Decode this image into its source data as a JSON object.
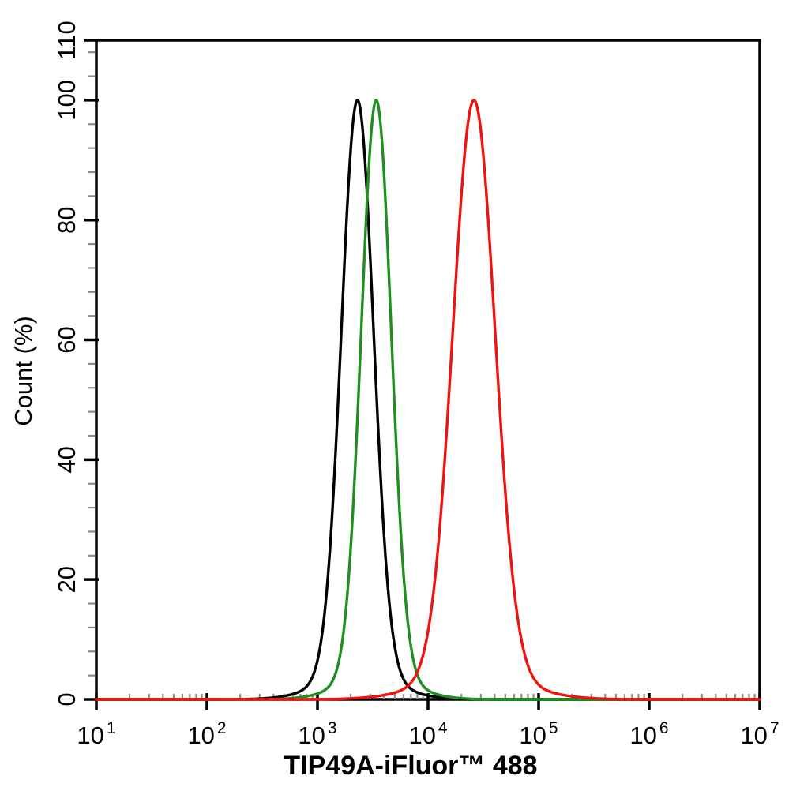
{
  "figure": {
    "background_color": "#ffffff",
    "axis_color": "#000000",
    "minor_tick_color": "#8c8c8c"
  },
  "chart_data": {
    "type": "line",
    "subtype": "flow-cytometry-overlay-histogram",
    "title": "",
    "xlabel": "TIP49A-iFluor™ 488",
    "ylabel": "Count  (%)",
    "x_scale": "log10",
    "x_tick_base": "10",
    "x_tick_exponents": [
      1,
      2,
      3,
      4,
      5,
      6,
      7
    ],
    "x_range_exponents": [
      1,
      7
    ],
    "x_minor_ticks_per_decade": [
      2,
      3,
      4,
      5,
      6,
      7,
      8,
      9
    ],
    "ylim": [
      0,
      110
    ],
    "y_major_ticks": [
      0,
      20,
      40,
      60,
      80,
      100,
      110
    ],
    "y_minor_tick_step": 4,
    "grid": false,
    "legend": "none",
    "series": [
      {
        "name": "black-histogram",
        "color": "#000000",
        "peak_value": 2300,
        "peak_count_pct": 100,
        "sigma_decades": 0.145
      },
      {
        "name": "green-histogram",
        "color": "#1f8f1f",
        "peak_value": 3400,
        "peak_count_pct": 100,
        "sigma_decades": 0.135
      },
      {
        "name": "red-histogram",
        "color": "#ed1410",
        "peak_value": 26000,
        "peak_count_pct": 100,
        "sigma_decades": 0.19
      }
    ]
  }
}
